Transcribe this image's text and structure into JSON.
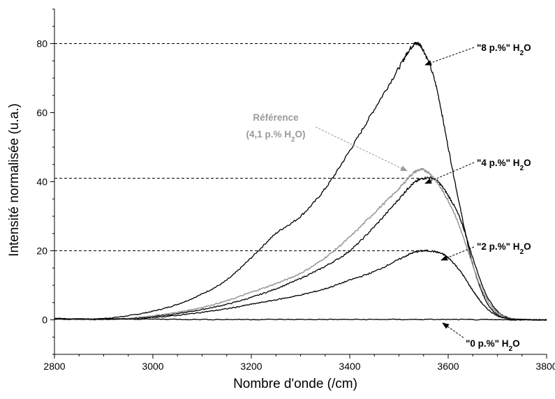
{
  "chart_data": {
    "type": "line",
    "title": "",
    "xlabel": "Nombre d'onde (/cm)",
    "ylabel": "Intensité normalisée (u.a.)",
    "xlim": [
      2800,
      3800
    ],
    "ylim": [
      -10,
      90
    ],
    "x_ticks": [
      2800,
      3000,
      3200,
      3400,
      3600,
      3800
    ],
    "y_ticks": [
      0,
      20,
      40,
      60,
      80
    ],
    "grid": false,
    "reference_lines": [
      80,
      41,
      20
    ],
    "series": [
      {
        "name": "\"8 p.%\" H2O",
        "color": "#000000",
        "x": [
          2800,
          2850,
          2900,
          2950,
          3000,
          3050,
          3100,
          3150,
          3200,
          3250,
          3300,
          3350,
          3400,
          3450,
          3500,
          3520,
          3535,
          3550,
          3575,
          3600,
          3625,
          3650,
          3675,
          3700,
          3725,
          3750,
          3800
        ],
        "y": [
          0.5,
          0.2,
          0.4,
          1.2,
          2.5,
          4.5,
          7.5,
          11.5,
          18,
          25,
          30,
          38,
          49,
          61,
          73,
          78,
          80,
          78,
          68,
          50,
          32,
          16,
          6,
          1.5,
          0.3,
          0.1,
          0
        ]
      },
      {
        "name": "\"4 p.%\" H2O",
        "color": "#000000",
        "x": [
          2800,
          2850,
          2900,
          2950,
          3000,
          3050,
          3100,
          3150,
          3200,
          3250,
          3300,
          3350,
          3400,
          3450,
          3500,
          3525,
          3550,
          3575,
          3600,
          3625,
          3650,
          3675,
          3700,
          3725,
          3750,
          3800
        ],
        "y": [
          0.2,
          0.1,
          0.1,
          0.4,
          1,
          1.8,
          3,
          4.5,
          6.5,
          9,
          12,
          15.5,
          20,
          27,
          35,
          39,
          41,
          40.5,
          36,
          29,
          18,
          8,
          2.5,
          0.5,
          0.1,
          0
        ]
      },
      {
        "name": "Référence (4,1 p.% H2O)",
        "color": "#9a9a9a",
        "x": [
          2800,
          2850,
          2900,
          2950,
          3000,
          3050,
          3100,
          3150,
          3200,
          3250,
          3300,
          3350,
          3400,
          3450,
          3500,
          3525,
          3545,
          3565,
          3590,
          3615,
          3640,
          3665,
          3690,
          3715,
          3740,
          3800
        ],
        "y": [
          0.2,
          0.1,
          0.1,
          0.4,
          1.2,
          2.2,
          3.6,
          5.5,
          8,
          10.5,
          13.5,
          18,
          24,
          31,
          38,
          42,
          43.5,
          42,
          37,
          30,
          20,
          10,
          3.5,
          0.8,
          0.1,
          0
        ]
      },
      {
        "name": "\"2 p.%\" H2O",
        "color": "#000000",
        "x": [
          2800,
          2850,
          2900,
          2950,
          3000,
          3050,
          3100,
          3150,
          3200,
          3250,
          3300,
          3350,
          3400,
          3450,
          3500,
          3530,
          3555,
          3580,
          3600,
          3625,
          3650,
          3675,
          3700,
          3725,
          3750,
          3800
        ],
        "y": [
          0.3,
          0.2,
          0.2,
          0.3,
          0.7,
          1.3,
          2.2,
          3.2,
          4.5,
          5.8,
          7.2,
          9,
          11.5,
          14,
          17.5,
          19.5,
          20,
          19.5,
          18,
          14,
          8.5,
          3.8,
          1.2,
          0.3,
          0.1,
          0
        ]
      },
      {
        "name": "\"0 p.%\" H2O",
        "color": "#000000",
        "x": [
          2800,
          2900,
          3000,
          3100,
          3200,
          3300,
          3400,
          3500,
          3600,
          3700,
          3800
        ],
        "y": [
          0.3,
          0.2,
          0.2,
          0.1,
          0.1,
          0.1,
          0.1,
          0.1,
          0.1,
          0,
          0
        ]
      }
    ],
    "annotations": {
      "label_8": "\"8 p.%\"  H",
      "label_4": "\"4 p.%\"  H",
      "label_2": "\"2 p.%\"  H",
      "label_0": "\"0 p.%\"  H",
      "sub": "2",
      "o": "O",
      "ref_line1": "Référence",
      "ref_line2a": "(4,1 p.%  H",
      "ref_line2b": "O)"
    }
  }
}
